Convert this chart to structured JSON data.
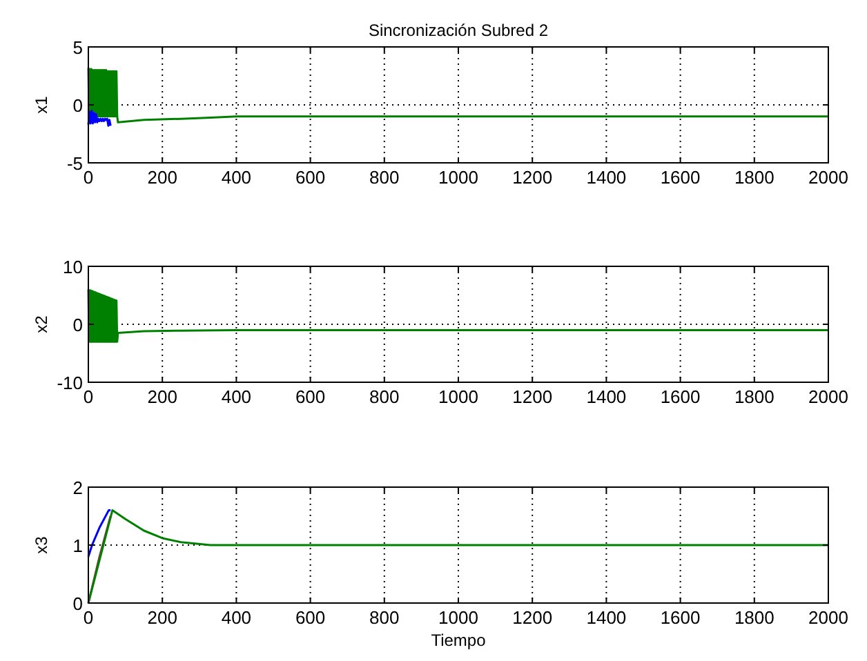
{
  "chart_data": [
    {
      "type": "line",
      "title": "Sincronización Subred 2",
      "ylabel": "x1",
      "xlim": [
        0,
        2000
      ],
      "ylim": [
        -5,
        5
      ],
      "xticks": [
        0,
        200,
        400,
        600,
        800,
        1000,
        1200,
        1400,
        1600,
        1800,
        2000
      ],
      "yticks": [
        -5,
        0,
        5
      ],
      "grid": true,
      "series": [
        {
          "color": "#008000",
          "x": [
            0,
            2,
            4,
            6,
            8,
            10,
            12,
            14,
            16,
            18,
            20,
            22,
            24,
            26,
            28,
            30,
            32,
            34,
            36,
            38,
            40,
            42,
            44,
            46,
            48,
            50,
            52,
            54,
            56,
            58,
            60,
            62,
            64,
            66,
            68,
            70,
            72,
            74,
            76,
            78,
            80,
            150,
            250,
            330,
            400,
            2000
          ],
          "values": [
            3.2,
            -1,
            3.1,
            -1,
            3.1,
            -1,
            3,
            -1,
            3,
            -1,
            3,
            -1,
            3,
            -1,
            3,
            -1,
            3,
            -1,
            3,
            -1,
            3,
            -1,
            3,
            -1,
            3,
            -1,
            2.9,
            -1,
            2.9,
            -1,
            2.9,
            -1,
            2.9,
            -1,
            2.9,
            -1,
            2.9,
            -1,
            2.9,
            -1,
            -1.5,
            -1.3,
            -1.2,
            -1.1,
            -1,
            -1
          ]
        },
        {
          "color": "#0000ff",
          "x": [
            0,
            3,
            6,
            9,
            12,
            15,
            18,
            21,
            24,
            27,
            30,
            33,
            36,
            39,
            42,
            45,
            48,
            51,
            54,
            57,
            60
          ],
          "values": [
            -1.7,
            -0.6,
            -1.6,
            -0.5,
            -1.6,
            -0.7,
            -1.5,
            -0.8,
            -1.5,
            -1.2,
            -1.4,
            -1.2,
            -1.4,
            -1.2,
            -1.4,
            -1.2,
            -1.3,
            -1.2,
            -1.8,
            -1.3,
            -1.8
          ]
        }
      ]
    },
    {
      "type": "line",
      "ylabel": "x2",
      "xlim": [
        0,
        2000
      ],
      "ylim": [
        -10,
        10
      ],
      "xticks": [
        0,
        200,
        400,
        600,
        800,
        1000,
        1200,
        1400,
        1600,
        1800,
        2000
      ],
      "yticks": [
        -10,
        0,
        10
      ],
      "grid": true,
      "series": [
        {
          "color": "#008000",
          "x": [
            0,
            2,
            4,
            6,
            8,
            10,
            12,
            14,
            16,
            18,
            20,
            22,
            24,
            26,
            28,
            30,
            32,
            34,
            36,
            38,
            40,
            42,
            44,
            46,
            48,
            50,
            52,
            54,
            56,
            58,
            60,
            62,
            64,
            66,
            68,
            70,
            72,
            74,
            76,
            78,
            80,
            150,
            250,
            400,
            2000
          ],
          "values": [
            6,
            -3,
            5.9,
            -3,
            5.8,
            -3,
            5.7,
            -3,
            5.6,
            -3,
            5.5,
            -3,
            5.4,
            -3,
            5.3,
            -3,
            5.2,
            -3,
            5.1,
            -3,
            5,
            -3,
            4.9,
            -3,
            4.8,
            -3,
            4.7,
            -3,
            4.6,
            -3,
            4.5,
            -3,
            4.4,
            -3,
            4.3,
            -3,
            4.2,
            -3,
            4.1,
            -3,
            -1.5,
            -1.2,
            -1.1,
            -1,
            -1
          ]
        }
      ]
    },
    {
      "type": "line",
      "ylabel": "x3",
      "xlabel": "Tiempo",
      "xlim": [
        0,
        2000
      ],
      "ylim": [
        0,
        2
      ],
      "xticks": [
        0,
        200,
        400,
        600,
        800,
        1000,
        1200,
        1400,
        1600,
        1800,
        2000
      ],
      "yticks": [
        0,
        1,
        2
      ],
      "grid": true,
      "series": [
        {
          "color": "#8b3a3a",
          "x": [
            0,
            30,
            60
          ],
          "values": [
            0,
            0.8,
            1.5
          ]
        },
        {
          "color": "#0000ff",
          "x": [
            0,
            10,
            30,
            55,
            60
          ],
          "values": [
            0.8,
            1,
            1.3,
            1.6,
            1.6
          ]
        },
        {
          "color": "#008000",
          "x": [
            0,
            65,
            100,
            150,
            200,
            250,
            330,
            2000
          ],
          "values": [
            0,
            1.6,
            1.45,
            1.25,
            1.12,
            1.05,
            1,
            1
          ]
        }
      ]
    }
  ]
}
